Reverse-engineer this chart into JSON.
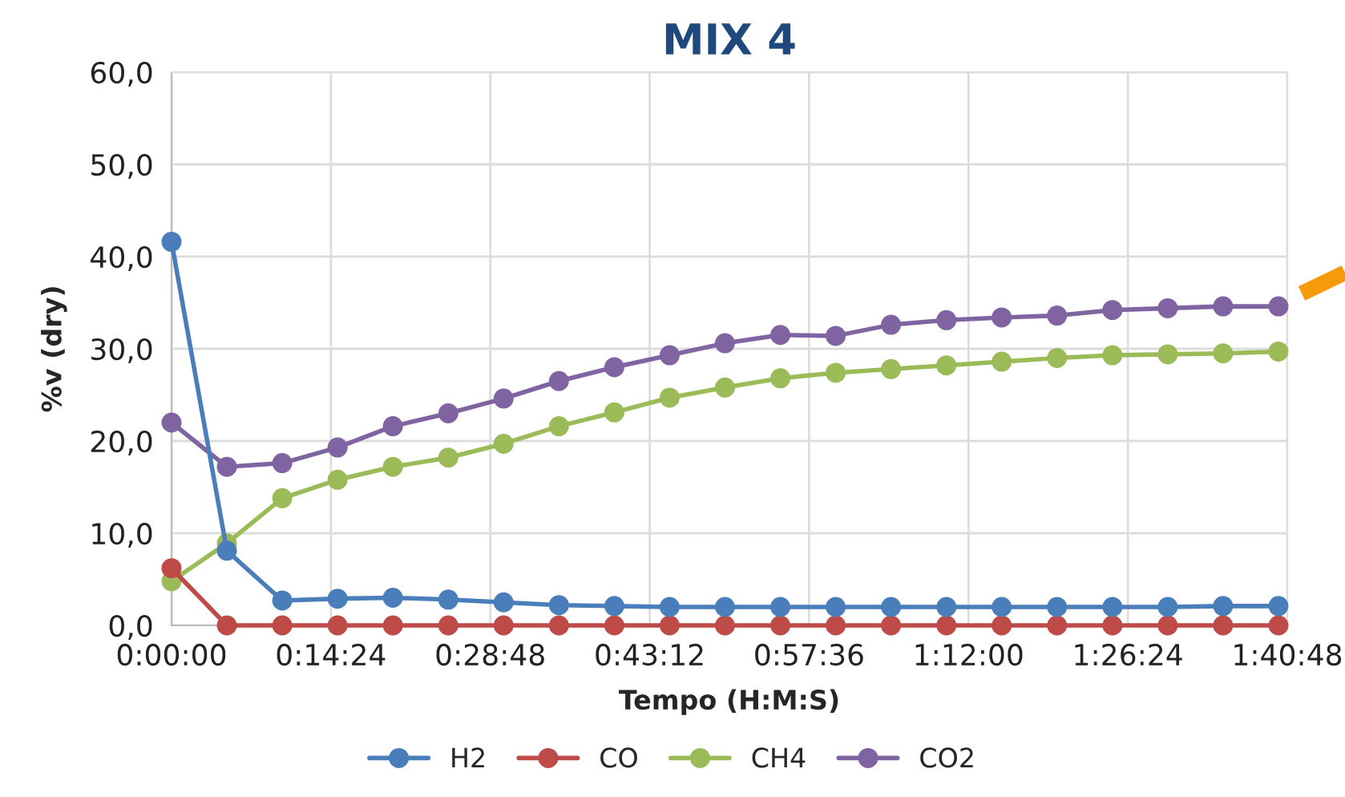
{
  "chart_data": {
    "type": "line",
    "title": "MIX 4",
    "xlabel": "Tempo (H:M:S)",
    "ylabel": "%v (dry)",
    "x": [
      0,
      0.0833,
      0.1667,
      0.25,
      0.3333,
      0.4167,
      0.5,
      0.5833,
      0.6667,
      0.75,
      0.8333,
      0.9167,
      1.0,
      1.0833,
      1.1667,
      1.25,
      1.3333,
      1.4167,
      1.5,
      1.5833,
      1.6667
    ],
    "series": [
      {
        "name": "H2",
        "color": "#4a7ebb",
        "values": [
          41.6,
          8.1,
          2.7,
          2.9,
          3.0,
          2.8,
          2.5,
          2.2,
          2.1,
          2.0,
          2.0,
          2.0,
          2.0,
          2.0,
          2.0,
          2.0,
          2.0,
          2.0,
          2.0,
          2.1,
          2.1
        ]
      },
      {
        "name": "CO",
        "color": "#be4b48",
        "values": [
          6.2,
          0,
          0,
          0,
          0,
          0,
          0,
          0,
          0,
          0,
          0,
          0,
          0,
          0,
          0,
          0,
          0,
          0,
          0,
          0,
          0
        ]
      },
      {
        "name": "CH4",
        "color": "#9bbb59",
        "values": [
          4.8,
          8.9,
          13.8,
          15.8,
          17.2,
          18.2,
          19.7,
          21.6,
          23.1,
          24.7,
          25.8,
          26.8,
          27.4,
          27.8,
          28.2,
          28.6,
          29.0,
          29.3,
          29.4,
          29.5,
          29.7
        ]
      },
      {
        "name": "CO2",
        "color": "#8064a2",
        "values": [
          22.0,
          17.2,
          17.6,
          19.3,
          21.6,
          23.0,
          24.6,
          26.5,
          28.0,
          29.3,
          30.6,
          31.5,
          31.4,
          32.6,
          33.1,
          33.4,
          33.6,
          34.2,
          34.4,
          34.6,
          34.6
        ]
      }
    ],
    "xlim": [
      0,
      1.68
    ],
    "xticks": [
      {
        "value": 0,
        "label": "0:00:00"
      },
      {
        "value": 0.24,
        "label": "0:14:24"
      },
      {
        "value": 0.48,
        "label": "0:28:48"
      },
      {
        "value": 0.72,
        "label": "0:43:12"
      },
      {
        "value": 0.96,
        "label": "0:57:36"
      },
      {
        "value": 1.2,
        "label": "1:12:00"
      },
      {
        "value": 1.44,
        "label": "1:26:24"
      },
      {
        "value": 1.68,
        "label": "1:40:48"
      }
    ],
    "ylim": [
      0,
      60
    ],
    "yticks": [
      {
        "value": 0,
        "label": "0,0"
      },
      {
        "value": 10,
        "label": "10,0"
      },
      {
        "value": 20,
        "label": "20,0"
      },
      {
        "value": 30,
        "label": "30,0"
      },
      {
        "value": 40,
        "label": "40,0"
      },
      {
        "value": 50,
        "label": "50,0"
      },
      {
        "value": 60,
        "label": "60,0"
      }
    ],
    "grid": true,
    "legend": "bottom",
    "marker": "circle",
    "line_style": "solid"
  }
}
